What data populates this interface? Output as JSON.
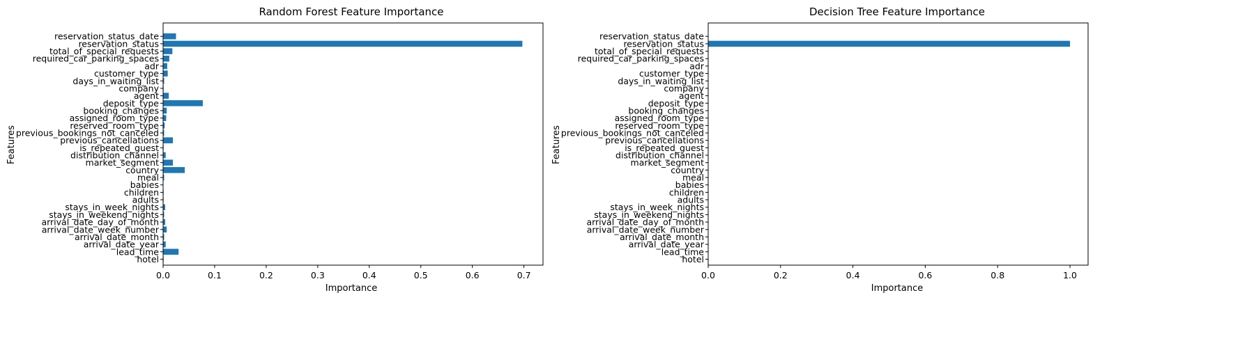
{
  "chart_data": [
    {
      "type": "bar",
      "orientation": "horizontal",
      "title": "Random Forest Feature Importance",
      "xlabel": "Importance",
      "ylabel": "Features",
      "xlim": [
        0,
        0.737
      ],
      "xticks": [
        0.0,
        0.1,
        0.2,
        0.3,
        0.4,
        0.5,
        0.6,
        0.7
      ],
      "xtick_labels": [
        "0.0",
        "0.1",
        "0.2",
        "0.3",
        "0.4",
        "0.5",
        "0.6",
        "0.7"
      ],
      "grid": false,
      "color": "#1f77b4",
      "categories": [
        "hotel",
        "lead_time",
        "arrival_date_year",
        "arrival_date_month",
        "arrival_date_week_number",
        "arrival_date_day_of_month",
        "stays_in_weekend_nights",
        "stays_in_week_nights",
        "adults",
        "children",
        "babies",
        "meal",
        "country",
        "market_segment",
        "distribution_channel",
        "is_repeated_guest",
        "previous_cancellations",
        "previous_bookings_not_canceled",
        "reserved_room_type",
        "assigned_room_type",
        "booking_changes",
        "deposit_type",
        "agent",
        "company",
        "days_in_waiting_list",
        "customer_type",
        "adr",
        "required_car_parking_spaces",
        "total_of_special_requests",
        "reservation_status",
        "reservation_status_date"
      ],
      "values": [
        0.001,
        0.03,
        0.005,
        0.002,
        0.007,
        0.004,
        0.002,
        0.004,
        0.001,
        0.001,
        0.0,
        0.002,
        0.042,
        0.019,
        0.005,
        0.001,
        0.019,
        0.002,
        0.003,
        0.006,
        0.007,
        0.077,
        0.011,
        0.001,
        0.002,
        0.009,
        0.008,
        0.012,
        0.018,
        0.697,
        0.025
      ]
    },
    {
      "type": "bar",
      "orientation": "horizontal",
      "title": "Decision Tree Feature Importance",
      "xlabel": "Importance",
      "ylabel": "Features",
      "xlim": [
        0,
        1.05
      ],
      "xticks": [
        0.0,
        0.2,
        0.4,
        0.6,
        0.8,
        1.0
      ],
      "xtick_labels": [
        "0.0",
        "0.2",
        "0.4",
        "0.6",
        "0.8",
        "1.0"
      ],
      "grid": false,
      "color": "#1f77b4",
      "categories": [
        "hotel",
        "lead_time",
        "arrival_date_year",
        "arrival_date_month",
        "arrival_date_week_number",
        "arrival_date_day_of_month",
        "stays_in_weekend_nights",
        "stays_in_week_nights",
        "adults",
        "children",
        "babies",
        "meal",
        "country",
        "market_segment",
        "distribution_channel",
        "is_repeated_guest",
        "previous_cancellations",
        "previous_bookings_not_canceled",
        "reserved_room_type",
        "assigned_room_type",
        "booking_changes",
        "deposit_type",
        "agent",
        "company",
        "days_in_waiting_list",
        "customer_type",
        "adr",
        "required_car_parking_spaces",
        "total_of_special_requests",
        "reservation_status",
        "reservation_status_date"
      ],
      "values": [
        0,
        0,
        0,
        0,
        0,
        0,
        0,
        0,
        0,
        0,
        0,
        0,
        0,
        0,
        0,
        0,
        0,
        0,
        0,
        0,
        0,
        0,
        0,
        0,
        0,
        0,
        0,
        0,
        0,
        1.0,
        0
      ]
    }
  ]
}
